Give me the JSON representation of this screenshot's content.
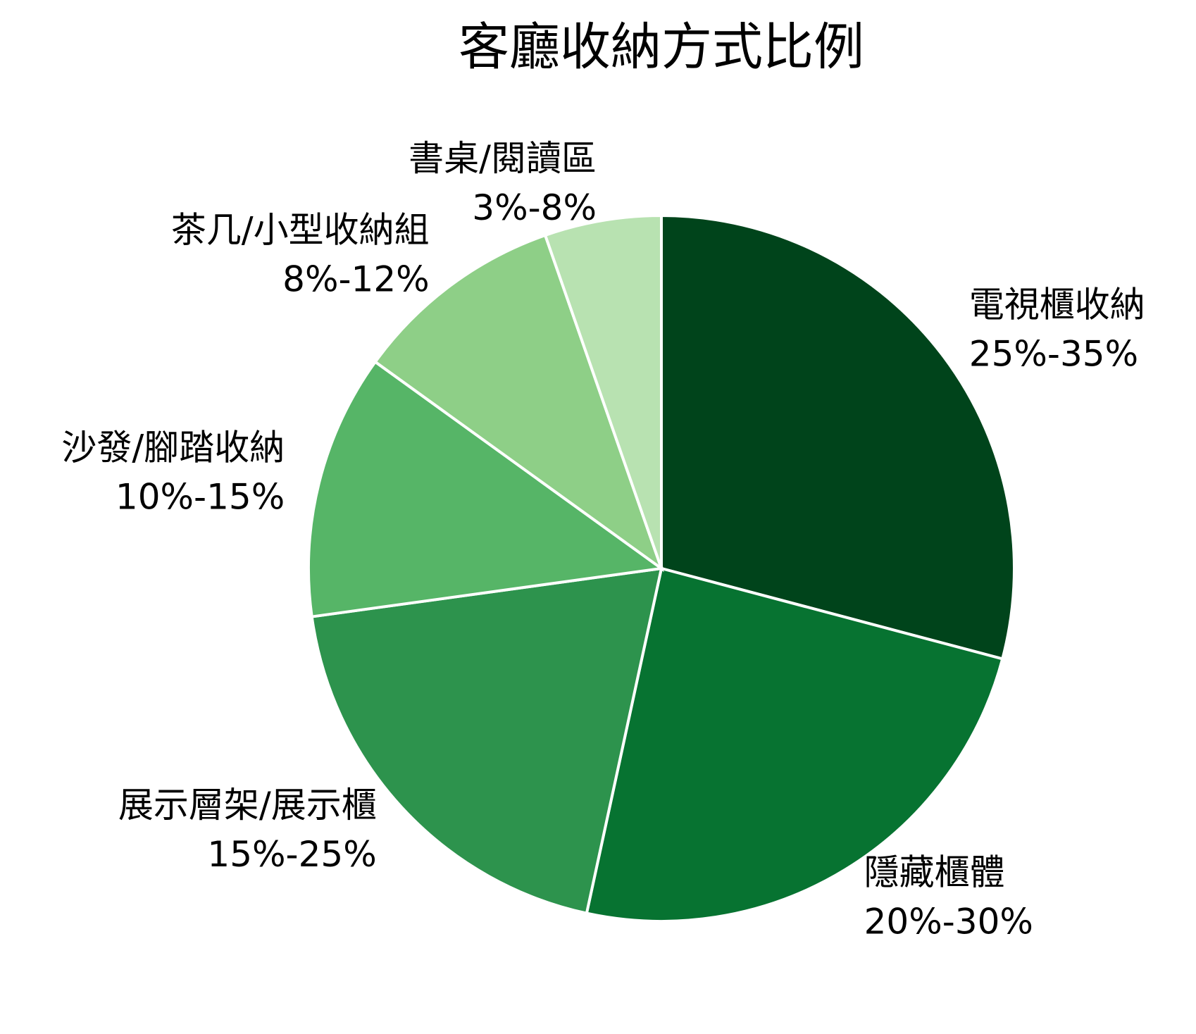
{
  "chart_data": {
    "type": "pie",
    "title": "客廳收納方式比例",
    "categories": [
      "電視櫃收納",
      "隱藏櫃體",
      "展示層架/展示櫃",
      "沙發/腳踏收納",
      "茶几/小型收納組",
      "書桌/閱讀區"
    ],
    "ranges": [
      "25%-35%",
      "20%-30%",
      "15%-25%",
      "10%-15%",
      "8%-12%",
      "3%-8%"
    ],
    "values": [
      30,
      25,
      20,
      12.5,
      10,
      5.5
    ],
    "colors": [
      "#00441b",
      "#077331",
      "#2d934d",
      "#56b567",
      "#8ecf87",
      "#b8e2b1"
    ],
    "start_angle": 0,
    "direction": "clockwise"
  }
}
